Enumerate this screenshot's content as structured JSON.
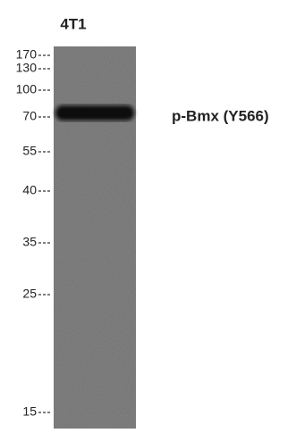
{
  "lane_label": "4T1",
  "markers": [
    "170",
    "130",
    "100",
    "70",
    "55",
    "40",
    "35",
    "25",
    "15"
  ],
  "band_label": "p-Bmx (Y566)"
}
